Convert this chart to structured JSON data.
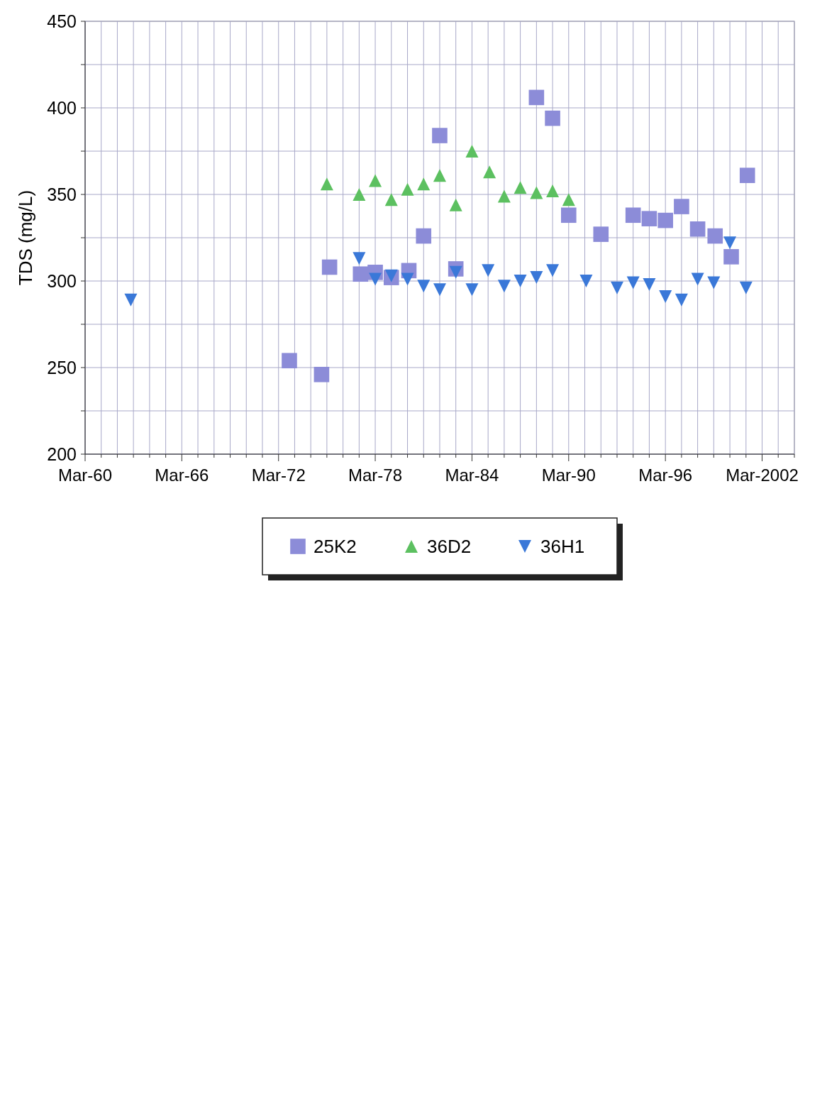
{
  "chart_data": {
    "type": "scatter",
    "ylabel": "TDS (mg/L)",
    "xlim": [
      "1960-03",
      "2004-03"
    ],
    "xticks": [
      {
        "value": "1960-03",
        "label": "Mar-60"
      },
      {
        "value": "1961-03",
        "label": null
      },
      {
        "value": "1962-03",
        "label": null
      },
      {
        "value": "1963-03",
        "label": null
      },
      {
        "value": "1964-03",
        "label": null
      },
      {
        "value": "1965-03",
        "label": null
      },
      {
        "value": "1966-03",
        "label": "Mar-66"
      },
      {
        "value": "1967-03",
        "label": null
      },
      {
        "value": "1968-03",
        "label": null
      },
      {
        "value": "1969-03",
        "label": null
      },
      {
        "value": "1970-03",
        "label": null
      },
      {
        "value": "1971-03",
        "label": null
      },
      {
        "value": "1972-03",
        "label": "Mar-72"
      },
      {
        "value": "1973-03",
        "label": null
      },
      {
        "value": "1974-03",
        "label": null
      },
      {
        "value": "1975-03",
        "label": null
      },
      {
        "value": "1976-03",
        "label": null
      },
      {
        "value": "1977-03",
        "label": null
      },
      {
        "value": "1978-03",
        "label": "Mar-78"
      },
      {
        "value": "1979-03",
        "label": null
      },
      {
        "value": "1980-03",
        "label": null
      },
      {
        "value": "1981-03",
        "label": null
      },
      {
        "value": "1982-03",
        "label": null
      },
      {
        "value": "1983-03",
        "label": null
      },
      {
        "value": "1984-03",
        "label": "Mar-84"
      },
      {
        "value": "1985-03",
        "label": null
      },
      {
        "value": "1986-03",
        "label": null
      },
      {
        "value": "1987-03",
        "label": null
      },
      {
        "value": "1988-03",
        "label": null
      },
      {
        "value": "1989-03",
        "label": null
      },
      {
        "value": "1990-03",
        "label": "Mar-90"
      },
      {
        "value": "1991-03",
        "label": null
      },
      {
        "value": "1992-03",
        "label": null
      },
      {
        "value": "1993-03",
        "label": null
      },
      {
        "value": "1994-03",
        "label": null
      },
      {
        "value": "1995-03",
        "label": null
      },
      {
        "value": "1996-03",
        "label": "Mar-96"
      },
      {
        "value": "1997-03",
        "label": null
      },
      {
        "value": "1998-03",
        "label": null
      },
      {
        "value": "1999-03",
        "label": null
      },
      {
        "value": "2000-03",
        "label": null
      },
      {
        "value": "2001-03",
        "label": null
      },
      {
        "value": "2002-03",
        "label": "Mar-2002"
      },
      {
        "value": "2003-03",
        "label": null
      },
      {
        "value": "2004-03",
        "label": null
      }
    ],
    "ylim": [
      200,
      450
    ],
    "yticks": [
      200,
      {
        "value": 225,
        "label": null
      },
      250,
      {
        "value": 275,
        "label": null
      },
      300,
      {
        "value": 325,
        "label": null
      },
      350,
      {
        "value": 375,
        "label": null
      },
      400,
      {
        "value": 425,
        "label": null
      },
      450
    ],
    "grid": true,
    "legend": "bottom",
    "series": [
      {
        "name": "25K2",
        "color": "#8c8cd8",
        "marker": "square",
        "x": [
          "2001-04",
          "2000-04",
          "1999-04",
          "1998-03",
          "1997-03",
          "1996-03",
          "1995-03",
          "1994-03",
          "1992-03",
          "1990-03",
          "1989-03",
          "1988-03",
          "1982-03",
          "1981-03",
          "1983-03",
          "1980-04",
          "1979-03",
          "1978-03",
          "1977-04",
          "1975-05",
          "1974-11",
          "1972-11"
        ],
        "values": [
          361,
          314,
          326,
          330,
          343,
          335,
          336,
          338,
          327,
          338,
          394,
          406,
          384,
          326,
          307,
          306,
          302,
          305,
          304,
          308,
          246,
          254
        ]
      },
      {
        "name": "36D2",
        "color": "#5cc060",
        "marker": "triangle",
        "x": [
          "1990-03",
          "1989-03",
          "1988-03",
          "1987-03",
          "1986-03",
          "1985-04",
          "1984-03",
          "1983-03",
          "1982-03",
          "1981-03",
          "1980-03",
          "1979-03",
          "1978-03",
          "1977-03",
          "1975-03"
        ],
        "values": [
          347,
          352,
          351,
          354,
          349,
          363,
          375,
          344,
          361,
          356,
          353,
          347,
          358,
          350,
          356
        ]
      },
      {
        "name": "36H1",
        "color": "#3a78d8",
        "marker": "triangle-down",
        "x": [
          "2001-03",
          "2000-03",
          "1999-03",
          "1998-03",
          "1997-03",
          "1996-03",
          "1995-03",
          "1994-03",
          "1993-03",
          "1991-04",
          "1989-03",
          "1988-03",
          "1987-03",
          "1986-03",
          "1985-03",
          "1984-03",
          "1983-03",
          "1982-03",
          "1981-03",
          "1980-03",
          "1979-03",
          "1978-03",
          "1977-03",
          "1963-01"
        ],
        "values": [
          296,
          322,
          299,
          301,
          289,
          291,
          298,
          299,
          296,
          300,
          306,
          302,
          300,
          297,
          306,
          295,
          305,
          295,
          297,
          301,
          303,
          301,
          313,
          289
        ]
      }
    ]
  }
}
